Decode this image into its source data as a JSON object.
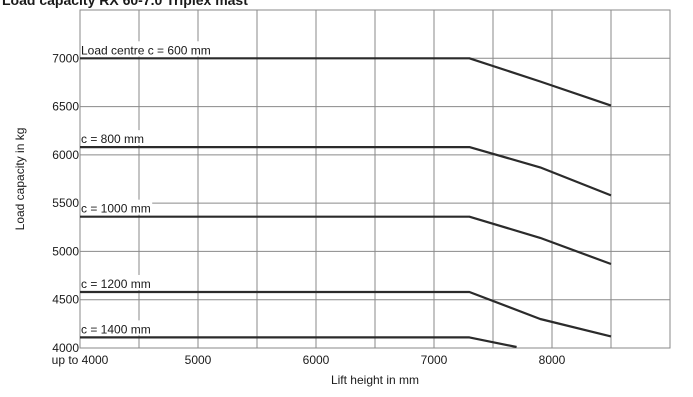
{
  "chart_data": {
    "type": "line",
    "title": "Load capacity RX 60-7.0 Triplex mast",
    "xlabel": "Lift height in mm",
    "ylabel": "Load capacity in kg",
    "xlim": [
      4000,
      9000
    ],
    "ylim": [
      4000,
      7500
    ],
    "x_ticks": [
      {
        "value": 4000,
        "label": "up to 4000"
      },
      {
        "value": 5000,
        "label": "5000"
      },
      {
        "value": 6000,
        "label": "6000"
      },
      {
        "value": 7000,
        "label": "7000"
      },
      {
        "value": 8000,
        "label": "8000"
      }
    ],
    "y_ticks": [
      4000,
      4500,
      5000,
      5500,
      6000,
      6500,
      7000
    ],
    "grid": true,
    "series": [
      {
        "name": "Load centre c = 600 mm",
        "x": [
          4000,
          7300,
          7900,
          8500
        ],
        "y": [
          7000,
          7000,
          6760,
          6510
        ]
      },
      {
        "name": "c = 800 mm",
        "x": [
          4000,
          7300,
          7900,
          8500
        ],
        "y": [
          6080,
          6080,
          5870,
          5580
        ]
      },
      {
        "name": "c = 1000 mm",
        "x": [
          4000,
          7300,
          7900,
          8500
        ],
        "y": [
          5360,
          5360,
          5140,
          4870
        ]
      },
      {
        "name": "c = 1200 mm",
        "x": [
          4000,
          7300,
          7900,
          8500
        ],
        "y": [
          4580,
          4580,
          4300,
          4120
        ]
      },
      {
        "name": "c = 1400 mm",
        "x": [
          4000,
          7300,
          7700
        ],
        "y": [
          4110,
          4110,
          4010
        ]
      }
    ]
  }
}
